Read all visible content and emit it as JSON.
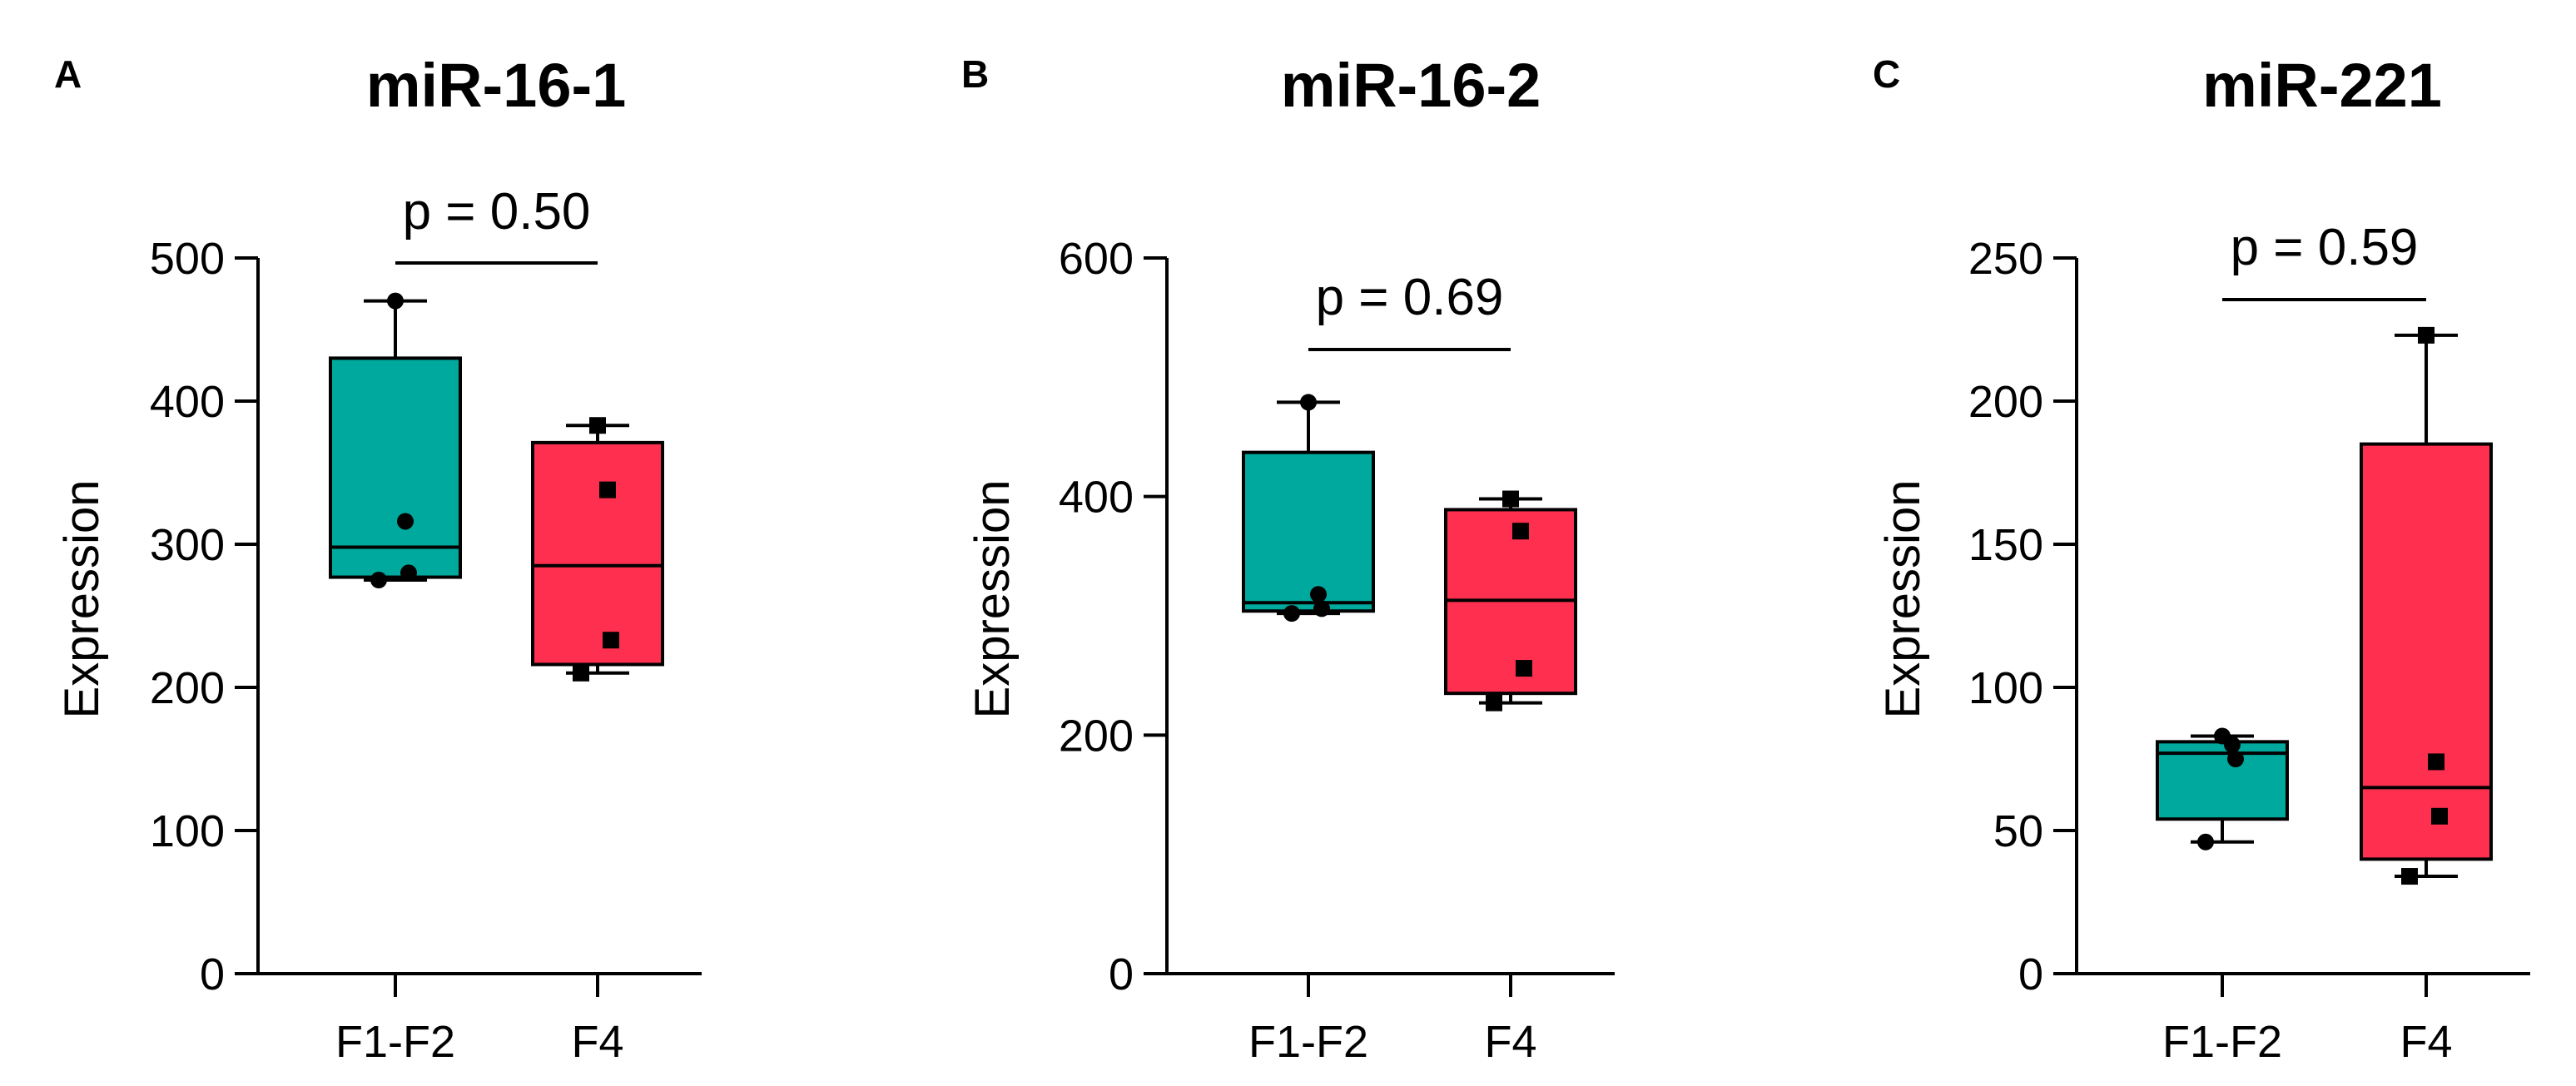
{
  "colors": {
    "group1": "#00a99d",
    "group2": "#ff304f",
    "line": "#000000"
  },
  "chart_data": [
    {
      "panel": "A",
      "type": "box",
      "title": "miR-16-1",
      "ylabel": "Expression",
      "ylim": [
        0,
        500
      ],
      "yticks": [
        0,
        100,
        200,
        300,
        400,
        500
      ],
      "categories": [
        "F1-F2",
        "F4"
      ],
      "comparison": "p = 0.50",
      "boxes": [
        {
          "category": "F1-F2",
          "min": 275,
          "q1": 277,
          "median": 298,
          "q3": 430,
          "max": 470,
          "points": [
            470,
            316,
            280,
            275
          ],
          "marker": "circle"
        },
        {
          "category": "F4",
          "min": 210,
          "q1": 216,
          "median": 285,
          "q3": 371,
          "max": 383,
          "points": [
            383,
            338,
            233,
            210
          ],
          "marker": "square"
        }
      ]
    },
    {
      "panel": "B",
      "type": "box",
      "title": "miR-16-2",
      "ylabel": "Expression",
      "ylim": [
        0,
        600
      ],
      "yticks": [
        0,
        200,
        400,
        600
      ],
      "categories": [
        "F1-F2",
        "F4"
      ],
      "comparison": "p = 0.69",
      "boxes": [
        {
          "category": "F1-F2",
          "min": 302,
          "q1": 304,
          "median": 311,
          "q3": 437,
          "max": 479,
          "points": [
            479,
            318,
            306,
            302
          ],
          "marker": "circle"
        },
        {
          "category": "F4",
          "min": 227,
          "q1": 235,
          "median": 313,
          "q3": 389,
          "max": 398,
          "points": [
            398,
            371,
            256,
            227
          ],
          "marker": "square"
        }
      ]
    },
    {
      "panel": "C",
      "type": "box",
      "title": "miR-221",
      "ylabel": "Expression",
      "ylim": [
        0,
        250
      ],
      "yticks": [
        0,
        50,
        100,
        150,
        200,
        250
      ],
      "categories": [
        "F1-F2",
        "F4"
      ],
      "comparison": "p = 0.59",
      "boxes": [
        {
          "category": "F1-F2",
          "min": 46,
          "q1": 54,
          "median": 77,
          "q3": 81,
          "max": 83,
          "points": [
            83,
            80,
            75,
            46
          ],
          "marker": "circle"
        },
        {
          "category": "F4",
          "min": 34,
          "q1": 40,
          "median": 65,
          "q3": 185,
          "max": 223,
          "points": [
            223,
            74,
            55,
            34
          ],
          "marker": "square"
        }
      ]
    }
  ]
}
